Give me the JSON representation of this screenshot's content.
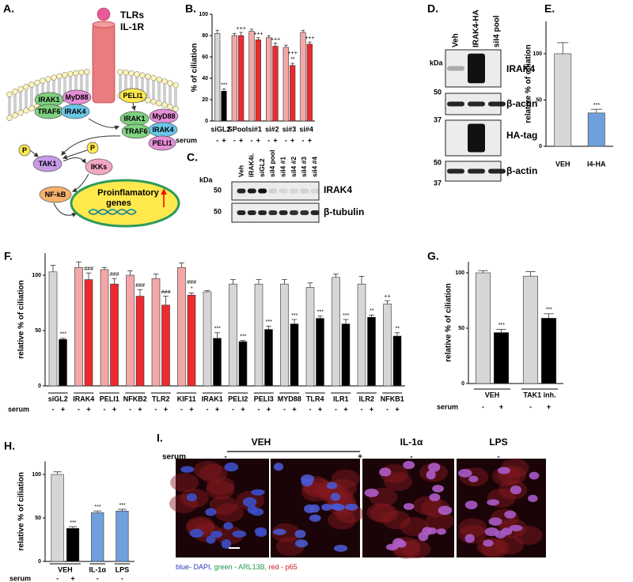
{
  "chart_data": [
    {
      "type": "bar",
      "panel": "B.",
      "ylabel": "% of ciliation",
      "categories": [
        "siGL2",
        "SPool",
        "si#1",
        "si#2",
        "si#3",
        "si#4"
      ],
      "serum_label": "serum",
      "group_lines": false,
      "series": [
        {
          "name": "-",
          "colors": [
            "#d6d6d6",
            "#f4a7a7",
            "#f4a7a7",
            "#f4a7a7",
            "#f4a7a7",
            "#f4a7a7"
          ],
          "values": [
            82,
            80,
            84,
            78,
            69,
            83
          ],
          "errors": [
            3,
            2,
            2,
            2,
            2,
            2
          ],
          "annotations": [
            null,
            null,
            null,
            null,
            null,
            null
          ]
        },
        {
          "name": "+",
          "colors": [
            "#000000",
            "#ec2a2f",
            "#ec2a2f",
            "#ec2a2f",
            "#ec2a2f",
            "#ec2a2f"
          ],
          "values": [
            28,
            80,
            76,
            70,
            52,
            72
          ],
          "errors": [
            2,
            3,
            2,
            3,
            2,
            2
          ],
          "annotations": [
            [
              "***"
            ],
            [
              "+++"
            ],
            [
              "+++"
            ],
            [
              "+++"
            ],
            [
              "+++",
              "**"
            ],
            [
              "+++"
            ]
          ]
        }
      ],
      "ylim": [
        0,
        100
      ],
      "yticks": [
        0,
        20,
        40,
        60,
        80,
        100
      ]
    },
    {
      "type": "bar",
      "panel": "E.",
      "ylabel": "relative % of ciliation",
      "categories": [
        "VEH",
        "I4-HA"
      ],
      "group_lines": false,
      "colors": [
        "#d6d6d6",
        "#6fa0dc"
      ],
      "values": [
        100,
        36
      ],
      "errors": [
        12,
        4
      ],
      "annotations": [
        null,
        [
          "***"
        ]
      ],
      "ylim": [
        0,
        135
      ],
      "yticks": [
        0,
        50,
        100
      ]
    },
    {
      "type": "bar",
      "panel": "F.",
      "ylabel": "relative % of ciliation",
      "categories": [
        "siGL2",
        "IRAK4",
        "PELI1",
        "NFKB2",
        "TLR2",
        "KIF11",
        "IRAK1",
        "PELI2",
        "PELI3",
        "MYD88",
        "TLR4",
        "ILR1",
        "ILR2",
        "NFKB1"
      ],
      "serum_label": "serum",
      "group_lines": true,
      "series": [
        {
          "name": "-",
          "colors": [
            "#d6d6d6",
            "#f4a7a7",
            "#f4a7a7",
            "#f4a7a7",
            "#f4a7a7",
            "#f4a7a7",
            "#d6d6d6",
            "#d6d6d6",
            "#d6d6d6",
            "#d6d6d6",
            "#d6d6d6",
            "#d6d6d6",
            "#d6d6d6",
            "#d6d6d6"
          ],
          "values": [
            103,
            107,
            105,
            100,
            97,
            107,
            85,
            92,
            92,
            92,
            89,
            98,
            92,
            74
          ],
          "errors": [
            6,
            5,
            2,
            4,
            4,
            4,
            1,
            4,
            4,
            4,
            4,
            3,
            7,
            3
          ],
          "annotations": [
            null,
            null,
            null,
            null,
            null,
            null,
            null,
            null,
            null,
            null,
            null,
            null,
            null,
            [
              "++"
            ]
          ]
        },
        {
          "name": "+",
          "colors": [
            "#000000",
            "#ec2a2f",
            "#ec2a2f",
            "#ec2a2f",
            "#ec2a2f",
            "#ec2a2f",
            "#000000",
            "#000000",
            "#000000",
            "#000000",
            "#000000",
            "#000000",
            "#000000",
            "#000000"
          ],
          "values": [
            42,
            96,
            92,
            81,
            73,
            82,
            43,
            40,
            51,
            56,
            61,
            56,
            62,
            45
          ],
          "errors": [
            1,
            6,
            5,
            6,
            8,
            2,
            5,
            1,
            3,
            4,
            2,
            4,
            2,
            3
          ],
          "annotations": [
            [
              "***"
            ],
            [
              "###"
            ],
            [
              "###"
            ],
            [
              "###"
            ],
            [
              "###"
            ],
            [
              "###",
              "*"
            ],
            [
              "***"
            ],
            [
              "***"
            ],
            [
              "***"
            ],
            [
              "***"
            ],
            [
              "***"
            ],
            [
              "***"
            ],
            [
              "**"
            ],
            [
              "**"
            ]
          ]
        }
      ],
      "ylim": [
        0,
        120
      ],
      "yticks": [
        0,
        50,
        100
      ]
    },
    {
      "type": "bar",
      "panel": "G.",
      "ylabel": "relative % of ciliation",
      "categories": [
        "VEH",
        "TAK1 inh."
      ],
      "serum_label": "serum",
      "group_lines": true,
      "series": [
        {
          "name": "-",
          "colors": [
            "#d6d6d6",
            "#d6d6d6"
          ],
          "values": [
            100,
            97
          ],
          "errors": [
            2,
            4
          ],
          "annotations": [
            null,
            null
          ]
        },
        {
          "name": "+",
          "colors": [
            "#000000",
            "#000000"
          ],
          "values": [
            46,
            59
          ],
          "errors": [
            3,
            4
          ],
          "annotations": [
            [
              "***"
            ],
            [
              "***"
            ]
          ]
        }
      ],
      "ylim": [
        0,
        110
      ],
      "yticks": [
        0,
        50,
        100
      ]
    },
    {
      "type": "bar",
      "panel": "H.",
      "ylabel": "relative % of ciliation",
      "categories": [
        "VEH",
        "IL-1α",
        "LPS"
      ],
      "serum_label": "serum",
      "group_lines": true,
      "series": [
        {
          "name": "-",
          "colors": [
            "#d6d6d6",
            "#6fa0dc",
            "#6fa0dc"
          ],
          "values": [
            100,
            56,
            58
          ],
          "errors": [
            3,
            2,
            2
          ],
          "annotations": [
            null,
            [
              "***"
            ],
            [
              "***"
            ]
          ]
        },
        {
          "name": "+",
          "colors": [
            "#000000",
            null,
            null
          ],
          "values": [
            38,
            null,
            null
          ],
          "errors": [
            2,
            null,
            null
          ],
          "annotations": [
            [
              "***"
            ],
            null,
            null
          ]
        }
      ],
      "ylim": [
        0,
        115
      ],
      "yticks": [
        0,
        50,
        100
      ]
    }
  ],
  "diagram": {
    "panel": "A.",
    "receptor": [
      "TLRs",
      "IL-1R"
    ],
    "nodes": [
      "PELI1",
      "IRAK1",
      "MyD88",
      "TRAF6",
      "IRAK4",
      "IRAK1",
      "MyD88",
      "TRAF6",
      "IRAK4",
      "PELI1",
      "P",
      "P",
      "TAK1",
      "IKKs",
      "NF-kB"
    ],
    "nucleus": [
      "Proinflamatory",
      "genes"
    ]
  },
  "blot_c": {
    "panel": "C.",
    "lanes": [
      "Veh",
      "IRAK4i.",
      "siGL2",
      "siI4 pool",
      "siI4 #1",
      "siI4 #2",
      "siI4 #3",
      "siI4 #4"
    ],
    "kda": "kDa",
    "markers": [
      50,
      50
    ],
    "proteins": [
      "IRAK4",
      "β-tubulin"
    ]
  },
  "blot_d": {
    "panel": "D.",
    "lanes": [
      "Veh",
      "IRAK4-HA",
      "siI4 pool"
    ],
    "kda": "kDa",
    "markers": [
      50,
      37,
      50,
      37
    ],
    "proteins": [
      "IRAK4",
      "β-actin",
      "HA-tag",
      "β-actin"
    ]
  },
  "images": {
    "panel": "I.",
    "conditions": [
      "VEH",
      "IL-1α",
      "LPS"
    ],
    "serum_label": "serum",
    "serum": [
      "-",
      "+",
      "-",
      "-"
    ],
    "legend": [
      "blue- DAPI,",
      "green - ARL13B,",
      "red - p65"
    ]
  }
}
